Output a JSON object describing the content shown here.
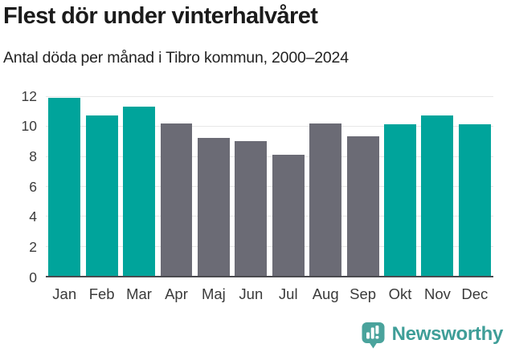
{
  "chart_data": {
    "type": "bar",
    "title": "Flest dör under vinterhalvåret",
    "subtitle": "Antal döda per månad i Tibro kommun, 2000–2024",
    "categories": [
      "Jan",
      "Feb",
      "Mar",
      "Apr",
      "Maj",
      "Jun",
      "Jul",
      "Aug",
      "Sep",
      "Okt",
      "Nov",
      "Dec"
    ],
    "values": [
      11.9,
      10.7,
      11.3,
      10.2,
      9.2,
      9.0,
      8.1,
      10.2,
      9.3,
      10.1,
      10.7,
      10.1
    ],
    "bar_groups": [
      "winter",
      "winter",
      "winter",
      "summer",
      "summer",
      "summer",
      "summer",
      "summer",
      "summer",
      "winter",
      "winter",
      "winter"
    ],
    "colors": {
      "winter": "#00a49b",
      "summer": "#6b6b75"
    },
    "xlabel": "",
    "ylabel": "",
    "ylim": [
      0,
      12
    ],
    "yticks": [
      0,
      2,
      4,
      6,
      8,
      10,
      12
    ],
    "grid": "horizontal",
    "legend": "none"
  },
  "footer": {
    "brand": "Newsworthy",
    "logo_icon": "speech-bubble-bar-chart-icon",
    "brand_color": "#3f9e98",
    "icon_color": "#4aa39c"
  }
}
